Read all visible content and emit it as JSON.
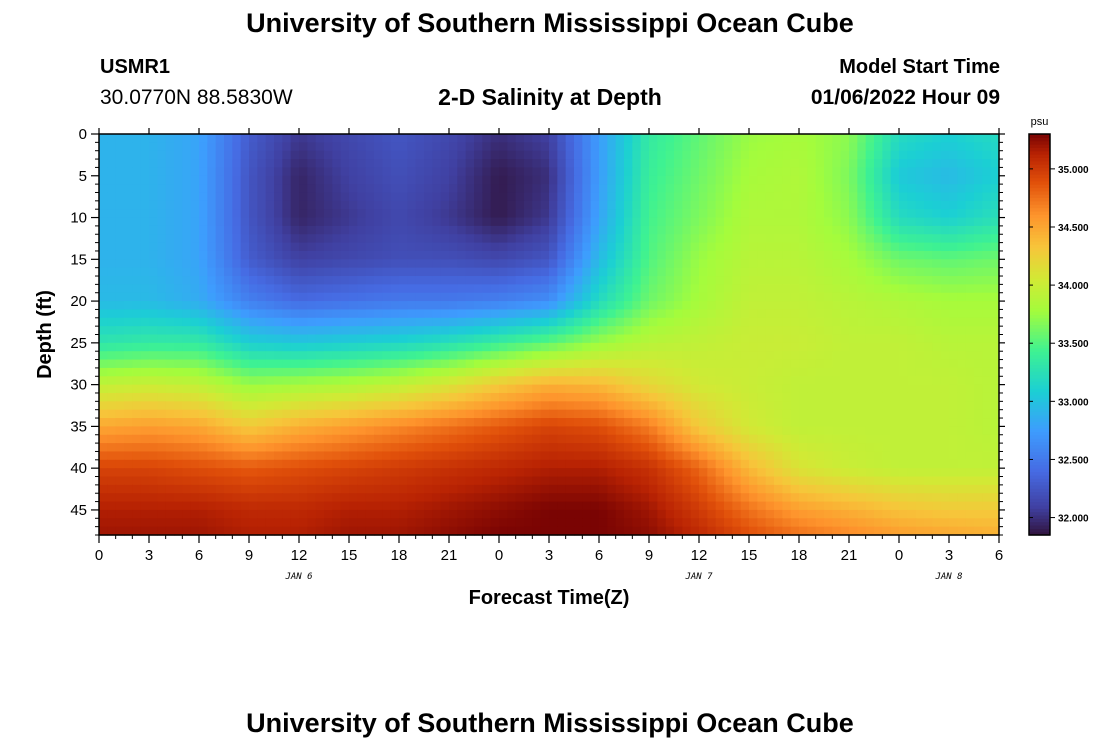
{
  "header": {
    "title": "University of Southern Mississippi Ocean Cube",
    "station": "USMR1",
    "coords": "30.0770N  88.5830W",
    "subtitle": "2-D Salinity at Depth",
    "model_start_label": "Model Start Time",
    "model_start_value": "01/06/2022 Hour 09"
  },
  "footer": {
    "title": "University of Southern Mississippi Ocean Cube"
  },
  "chart_data": {
    "type": "heatmap",
    "title": "2-D Salinity at Depth",
    "xlabel": "Forecast Time(Z)",
    "ylabel": "Depth (ft)",
    "x_unit": "forecast hours from 0Z JAN 6",
    "x_range": [
      0,
      54
    ],
    "y_range": [
      0,
      48
    ],
    "y_inverted": true,
    "x_ticks": [
      0,
      3,
      6,
      9,
      12,
      15,
      18,
      21,
      24,
      27,
      30,
      33,
      36,
      39,
      42,
      45,
      48,
      51,
      54
    ],
    "x_tick_labels": [
      "0",
      "3",
      "6",
      "9",
      "12",
      "15",
      "18",
      "21",
      "0",
      "3",
      "6",
      "9",
      "12",
      "15",
      "18",
      "21",
      "0",
      "3",
      "6"
    ],
    "y_ticks": [
      0,
      5,
      10,
      15,
      20,
      25,
      30,
      35,
      40,
      45
    ],
    "y_tick_labels": [
      "0",
      "5",
      "10",
      "15",
      "20",
      "25",
      "30",
      "35",
      "40",
      "45"
    ],
    "date_labels": [
      {
        "x": 12,
        "label": "JAN 6"
      },
      {
        "x": 36,
        "label": "JAN 7"
      },
      {
        "x": 51,
        "label": "JAN 8"
      }
    ],
    "colorbar": {
      "unit": "psu",
      "min": 31.85,
      "max": 35.3,
      "ticks": [
        32.0,
        32.5,
        33.0,
        33.5,
        34.0,
        34.5,
        35.0
      ],
      "tick_labels": [
        "32.000",
        "32.500",
        "33.000",
        "33.500",
        "34.000",
        "34.500",
        "35.000"
      ]
    },
    "grid_x": [
      0,
      3,
      6,
      9,
      12,
      15,
      18,
      21,
      24,
      27,
      30,
      33,
      36,
      39,
      42,
      45,
      48,
      51,
      54
    ],
    "grid_y": [
      0,
      5,
      10,
      15,
      20,
      25,
      30,
      35,
      40,
      45,
      48
    ],
    "values": [
      [
        32.9,
        32.9,
        32.8,
        32.3,
        32.05,
        32.15,
        32.25,
        32.15,
        32.0,
        32.1,
        32.75,
        33.35,
        33.55,
        33.75,
        33.8,
        33.7,
        33.2,
        33.1,
        33.2
      ],
      [
        32.9,
        32.9,
        32.8,
        32.25,
        31.95,
        32.1,
        32.2,
        32.1,
        31.9,
        32.0,
        32.75,
        33.4,
        33.6,
        33.8,
        33.85,
        33.65,
        33.05,
        32.95,
        33.1
      ],
      [
        32.9,
        32.9,
        32.8,
        32.25,
        31.95,
        32.05,
        32.15,
        32.05,
        31.9,
        32.05,
        32.8,
        33.45,
        33.65,
        33.85,
        33.85,
        33.7,
        33.2,
        33.1,
        33.25
      ],
      [
        32.9,
        32.9,
        32.8,
        32.3,
        32.1,
        32.15,
        32.2,
        32.2,
        32.15,
        32.25,
        32.95,
        33.5,
        33.75,
        33.9,
        33.9,
        33.8,
        33.6,
        33.55,
        33.6
      ],
      [
        32.95,
        32.95,
        32.85,
        32.55,
        32.4,
        32.45,
        32.5,
        32.5,
        32.55,
        32.65,
        33.2,
        33.6,
        33.8,
        33.95,
        33.95,
        33.9,
        33.85,
        33.8,
        33.8
      ],
      [
        33.3,
        33.35,
        33.35,
        33.1,
        33.05,
        33.1,
        33.15,
        33.25,
        33.4,
        33.55,
        33.75,
        33.9,
        33.95,
        34.0,
        34.0,
        33.95,
        33.95,
        33.9,
        33.9
      ],
      [
        33.95,
        34.0,
        33.95,
        33.75,
        33.8,
        33.85,
        33.95,
        34.1,
        34.3,
        34.45,
        34.4,
        34.2,
        34.05,
        34.0,
        33.95,
        33.95,
        33.95,
        33.95,
        33.9
      ],
      [
        34.5,
        34.55,
        34.5,
        34.3,
        34.45,
        34.55,
        34.65,
        34.75,
        34.85,
        34.95,
        34.9,
        34.7,
        34.3,
        34.05,
        33.95,
        33.95,
        33.95,
        33.95,
        33.9
      ],
      [
        34.95,
        34.95,
        34.9,
        34.85,
        34.9,
        34.95,
        35.0,
        35.05,
        35.1,
        35.15,
        35.15,
        35.05,
        34.8,
        34.4,
        34.1,
        34.0,
        33.95,
        33.95,
        33.95
      ],
      [
        35.15,
        35.15,
        35.15,
        35.1,
        35.1,
        35.15,
        35.15,
        35.2,
        35.25,
        35.3,
        35.3,
        35.2,
        35.0,
        34.75,
        34.55,
        34.45,
        34.35,
        34.3,
        34.3
      ],
      [
        35.2,
        35.2,
        35.2,
        35.15,
        35.15,
        35.2,
        35.2,
        35.25,
        35.3,
        35.3,
        35.3,
        35.25,
        35.1,
        34.9,
        34.75,
        34.65,
        34.55,
        34.5,
        34.45
      ]
    ]
  }
}
